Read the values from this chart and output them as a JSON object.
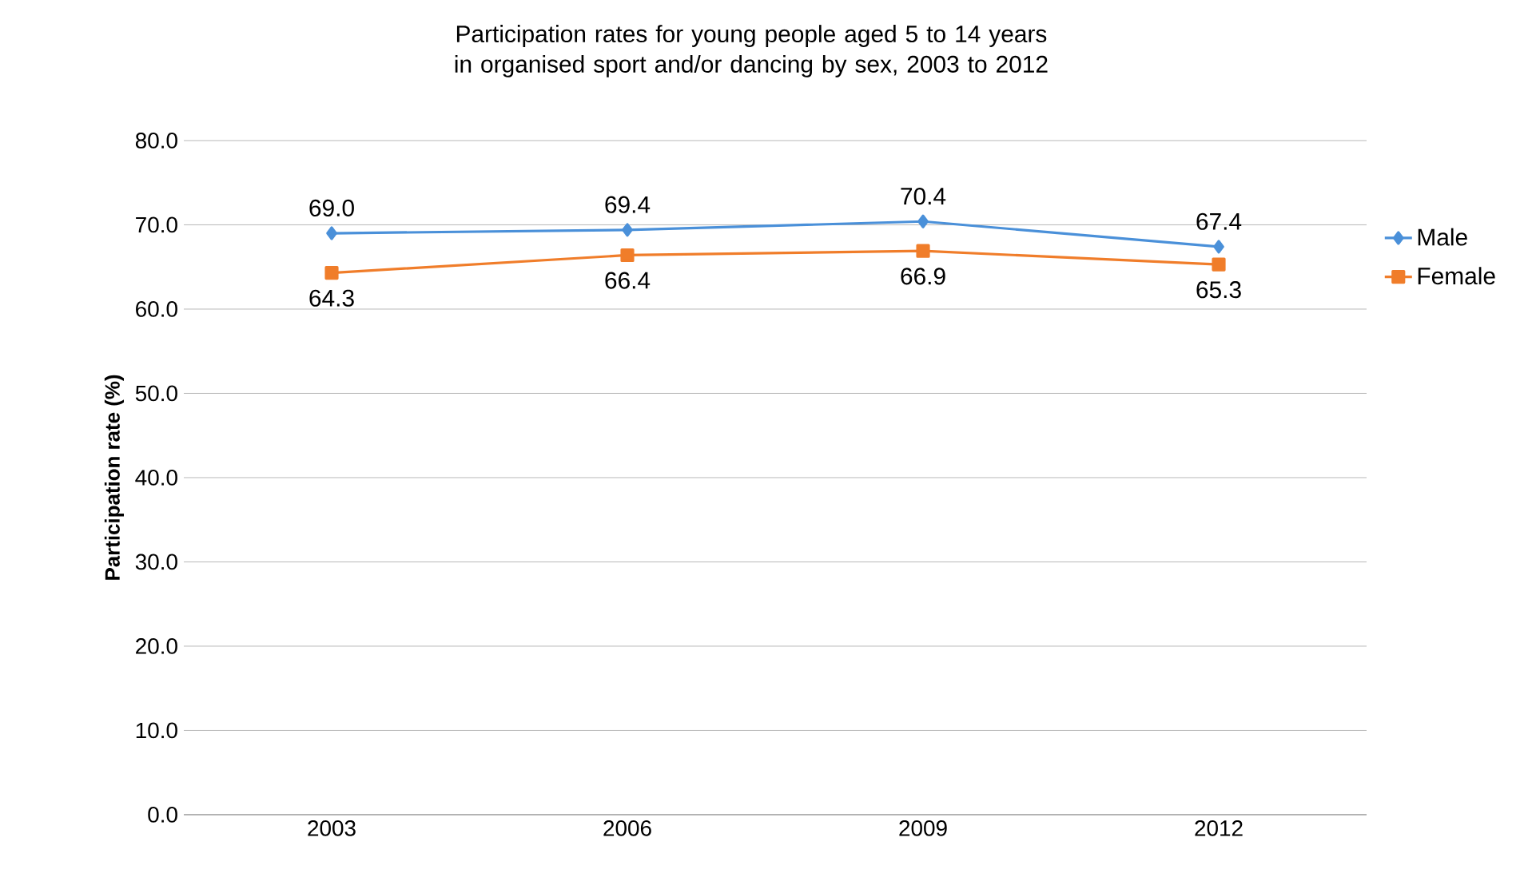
{
  "chart_data": {
    "type": "line",
    "title": "Participation rates for young people aged 5 to 14 years in organised sport and/or dancing by sex, 2003 to 2012",
    "ylabel": "Participation rate (%)",
    "categories": [
      "2003",
      "2006",
      "2009",
      "2012"
    ],
    "series": [
      {
        "name": "Male",
        "color": "#4a90d9",
        "marker": "diamond",
        "values": [
          69.0,
          69.4,
          70.4,
          67.4
        ],
        "value_labels": [
          "69.0",
          "69.4",
          "70.4",
          "67.4"
        ]
      },
      {
        "name": "Female",
        "color": "#f07d2a",
        "marker": "square",
        "values": [
          64.3,
          66.4,
          66.9,
          65.3
        ],
        "value_labels": [
          "64.3",
          "66.4",
          "66.9",
          "65.3"
        ]
      }
    ],
    "ylim": [
      0,
      80
    ],
    "yticks": [
      {
        "value": 0,
        "label": "0.0"
      },
      {
        "value": 10,
        "label": "10.0"
      },
      {
        "value": 20,
        "label": "20.0"
      },
      {
        "value": 30,
        "label": "30.0"
      },
      {
        "value": 40,
        "label": "40.0"
      },
      {
        "value": 50,
        "label": "50.0"
      },
      {
        "value": 60,
        "label": "60.0"
      },
      {
        "value": 70,
        "label": "70.0"
      },
      {
        "value": 80,
        "label": "80.0"
      }
    ],
    "grid": "y",
    "legend": "right",
    "line_style": "solid"
  }
}
